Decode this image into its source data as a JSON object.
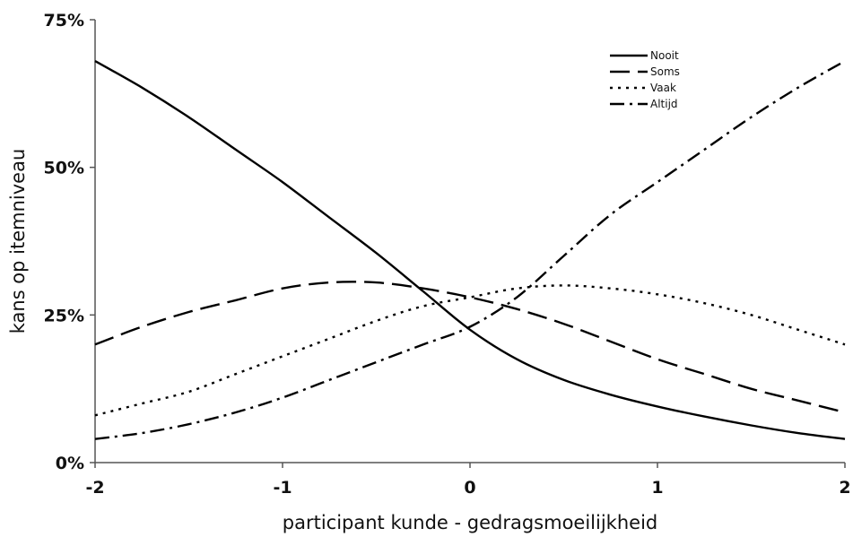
{
  "chart_data": {
    "type": "line",
    "title": "",
    "xlabel": "participant kunde - gedragsmoeilijkheid",
    "ylabel": "kans op itemniveau",
    "xlim": [
      -2,
      2
    ],
    "ylim": [
      0,
      75
    ],
    "grid": false,
    "legend_position": "top-right",
    "x_ticks": [
      {
        "value": -2,
        "label": "-2"
      },
      {
        "value": -1,
        "label": "-1"
      },
      {
        "value": 0,
        "label": "0"
      },
      {
        "value": 1,
        "label": "1"
      },
      {
        "value": 2,
        "label": "2"
      }
    ],
    "y_ticks": [
      {
        "value": 0,
        "label": "0%"
      },
      {
        "value": 25,
        "label": "25%"
      },
      {
        "value": 50,
        "label": "50%"
      },
      {
        "value": 75,
        "label": "75%"
      }
    ],
    "x": [
      -2,
      -1.75,
      -1.5,
      -1.25,
      -1,
      -0.75,
      -0.5,
      -0.25,
      0,
      0.25,
      0.5,
      0.75,
      1,
      1.25,
      1.5,
      1.75,
      2
    ],
    "series": [
      {
        "name": "Nooit",
        "dash": "solid",
        "color": "#000000",
        "values": [
          68,
          63.5,
          58.5,
          53,
          47.5,
          41.5,
          35.5,
          29,
          22.5,
          17.5,
          14,
          11.5,
          9.5,
          7.8,
          6.3,
          5,
          4
        ]
      },
      {
        "name": "Soms",
        "dash": "long-dash",
        "color": "#000000",
        "values": [
          20,
          23,
          25.5,
          27.5,
          29.5,
          30.5,
          30.5,
          29.5,
          28,
          26,
          23.5,
          20.5,
          17.5,
          15,
          12.5,
          10.5,
          8.5
        ]
      },
      {
        "name": "Vaak",
        "dash": "dot",
        "color": "#000000",
        "values": [
          8,
          10,
          12,
          15,
          18,
          21,
          24,
          26.5,
          28,
          29.5,
          30,
          29.5,
          28.5,
          27,
          25,
          22.5,
          20
        ]
      },
      {
        "name": "Altijd",
        "dash": "dash-dot",
        "color": "#000000",
        "values": [
          4,
          5,
          6.5,
          8.5,
          11,
          14,
          17,
          20,
          23,
          28,
          35,
          42,
          47.5,
          53,
          58.5,
          63.5,
          68
        ]
      }
    ]
  }
}
